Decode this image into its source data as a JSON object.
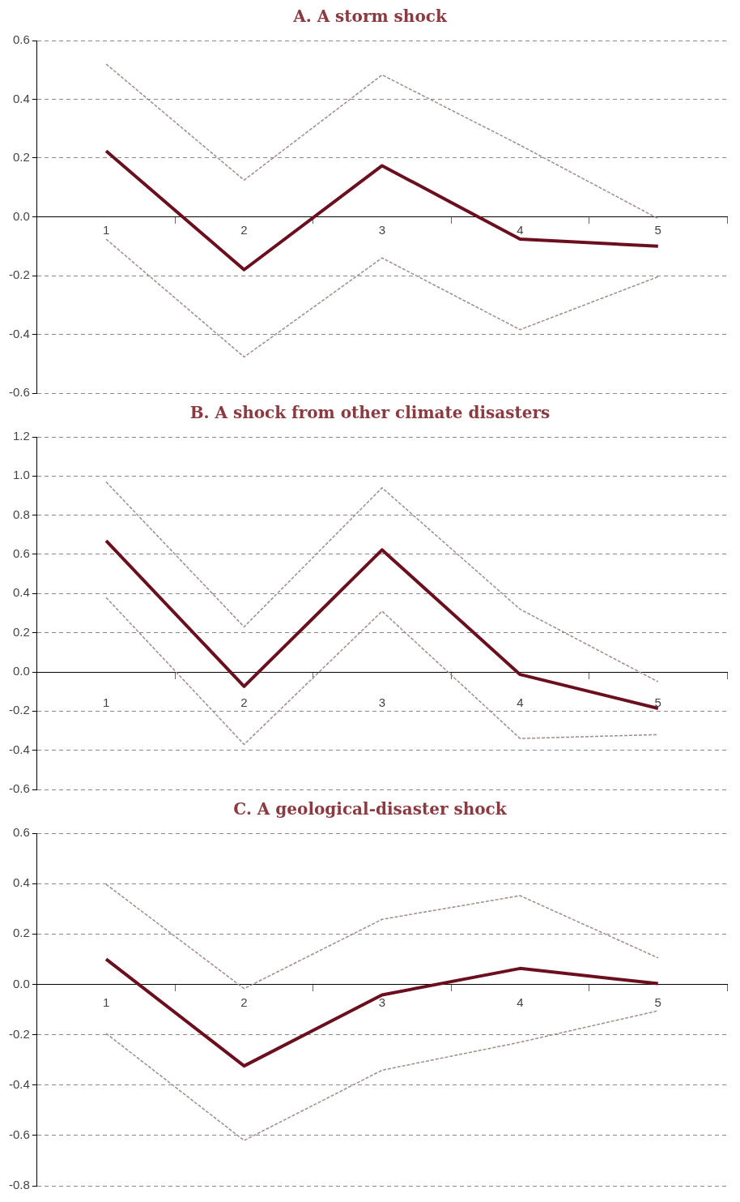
{
  "chart_data": [
    {
      "type": "line",
      "title": "A. A storm shock",
      "categories": [
        "1",
        "2",
        "3",
        "4",
        "5"
      ],
      "ylim": [
        -0.6,
        0.6
      ],
      "yticks": [
        {
          "value": -0.6,
          "label": "-0.6"
        },
        {
          "value": -0.4,
          "label": "-0.4"
        },
        {
          "value": -0.2,
          "label": "-0.2"
        },
        {
          "value": 0,
          "label": "0.0"
        },
        {
          "value": 0.2,
          "label": "0.2"
        },
        {
          "value": 0.4,
          "label": "0.4"
        },
        {
          "value": 0.6,
          "label": "0.6"
        }
      ],
      "grid": "y",
      "legend": false,
      "marker": "none",
      "series": [
        {
          "color": "#a08c88",
          "line_style": "dashed",
          "values": [
            0.52,
            0.125,
            0.483,
            0.244,
            -0.006
          ]
        },
        {
          "color": "#a08c88",
          "line_style": "dashed",
          "values": [
            -0.076,
            -0.477,
            -0.14,
            -0.384,
            -0.204
          ]
        },
        {
          "color": "#6b0f1f",
          "line_style": "solid",
          "values": [
            0.224,
            -0.18,
            0.174,
            -0.076,
            -0.1
          ]
        }
      ]
    },
    {
      "type": "line",
      "title": "B. A shock from other climate disasters",
      "categories": [
        "1",
        "2",
        "3",
        "4",
        "5"
      ],
      "ylim": [
        -0.6,
        1.2
      ],
      "yticks": [
        {
          "value": -0.6,
          "label": "-0.6"
        },
        {
          "value": -0.4,
          "label": "-0.4"
        },
        {
          "value": -0.2,
          "label": "-0.2"
        },
        {
          "value": 0,
          "label": "0.0"
        },
        {
          "value": 0.2,
          "label": "0.2"
        },
        {
          "value": 0.4,
          "label": "0.4"
        },
        {
          "value": 0.6,
          "label": "0.6"
        },
        {
          "value": 0.8,
          "label": "0.8"
        },
        {
          "value": 1.0,
          "label": "1.0"
        },
        {
          "value": 1.2,
          "label": "1.2"
        }
      ],
      "grid": "y",
      "legend": false,
      "marker": "none",
      "series": [
        {
          "color": "#a08c88",
          "line_style": "dashed",
          "values": [
            0.97,
            0.23,
            0.94,
            0.32,
            -0.05
          ]
        },
        {
          "color": "#a08c88",
          "line_style": "dashed",
          "values": [
            0.38,
            -0.37,
            0.31,
            -0.34,
            -0.32
          ]
        },
        {
          "color": "#6b0f1f",
          "line_style": "solid",
          "values": [
            0.67,
            -0.074,
            0.623,
            -0.013,
            -0.186
          ]
        }
      ]
    },
    {
      "type": "line",
      "title": "C. A geological-disaster shock",
      "categories": [
        "1",
        "2",
        "3",
        "4",
        "5"
      ],
      "ylim": [
        -0.8,
        0.6
      ],
      "yticks": [
        {
          "value": -0.8,
          "label": "-0.8"
        },
        {
          "value": -0.6,
          "label": "-0.6"
        },
        {
          "value": -0.4,
          "label": "-0.4"
        },
        {
          "value": -0.2,
          "label": "-0.2"
        },
        {
          "value": 0,
          "label": "0.0"
        },
        {
          "value": 0.2,
          "label": "0.2"
        },
        {
          "value": 0.4,
          "label": "0.4"
        },
        {
          "value": 0.6,
          "label": "0.6"
        }
      ],
      "grid": "y",
      "legend": false,
      "marker": "none",
      "series": [
        {
          "color": "#a08c88",
          "line_style": "dashed",
          "values": [
            0.397,
            -0.017,
            0.258,
            0.352,
            0.105
          ]
        },
        {
          "color": "#a08c88",
          "line_style": "dashed",
          "values": [
            -0.195,
            -0.62,
            -0.341,
            -0.23,
            -0.105
          ]
        },
        {
          "color": "#6b0f1f",
          "line_style": "solid",
          "values": [
            0.1,
            -0.324,
            -0.042,
            0.063,
            0.003
          ]
        }
      ]
    }
  ]
}
